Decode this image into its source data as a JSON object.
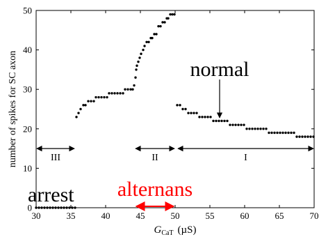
{
  "chart_data": {
    "type": "scatter",
    "xlabel_main": "G",
    "xlabel_sub": "CaT",
    "xlabel_unit": "(µS)",
    "ylabel": "number of spikes for SC axon",
    "xlim": [
      30,
      70
    ],
    "ylim": [
      0,
      50
    ],
    "x_ticks": [
      "30",
      "35",
      "40",
      "45",
      "50",
      "55",
      "60",
      "65",
      "70"
    ],
    "y_ticks": [
      "0",
      "10",
      "20",
      "30",
      "40",
      "50"
    ],
    "marker_color": "#000000",
    "series": [
      {
        "points": [
          [
            30.0,
            0
          ],
          [
            30.4,
            0
          ],
          [
            30.8,
            0
          ],
          [
            31.2,
            0
          ],
          [
            31.6,
            0
          ],
          [
            32.0,
            0
          ],
          [
            32.4,
            0
          ],
          [
            32.8,
            0
          ],
          [
            33.2,
            0
          ],
          [
            33.6,
            0
          ],
          [
            34.0,
            0
          ],
          [
            34.4,
            0
          ],
          [
            34.8,
            0
          ],
          [
            35.2,
            0
          ],
          [
            35.6,
            0
          ],
          [
            35.8,
            23
          ],
          [
            36.1,
            24
          ],
          [
            36.4,
            25
          ],
          [
            36.8,
            26
          ],
          [
            37.1,
            26
          ],
          [
            37.5,
            27
          ],
          [
            37.9,
            27
          ],
          [
            38.3,
            27
          ],
          [
            38.6,
            28
          ],
          [
            39.0,
            28
          ],
          [
            39.4,
            28
          ],
          [
            39.8,
            28
          ],
          [
            40.2,
            28
          ],
          [
            40.5,
            29
          ],
          [
            40.9,
            29
          ],
          [
            41.3,
            29
          ],
          [
            41.7,
            29
          ],
          [
            42.1,
            29
          ],
          [
            42.5,
            29
          ],
          [
            42.8,
            30
          ],
          [
            43.2,
            30
          ],
          [
            43.6,
            30
          ],
          [
            43.9,
            30
          ],
          [
            44.1,
            31
          ],
          [
            44.3,
            33
          ],
          [
            44.4,
            35
          ],
          [
            44.5,
            36
          ],
          [
            44.7,
            37
          ],
          [
            44.9,
            38
          ],
          [
            45.1,
            39
          ],
          [
            45.4,
            40
          ],
          [
            45.6,
            41
          ],
          [
            45.9,
            42
          ],
          [
            46.2,
            42
          ],
          [
            46.5,
            43
          ],
          [
            46.7,
            43
          ],
          [
            47.0,
            44
          ],
          [
            47.3,
            44
          ],
          [
            47.6,
            46
          ],
          [
            47.9,
            46
          ],
          [
            48.2,
            47
          ],
          [
            48.5,
            47
          ],
          [
            48.8,
            48
          ],
          [
            49.0,
            48
          ],
          [
            49.3,
            49
          ],
          [
            49.6,
            49
          ],
          [
            49.9,
            49
          ],
          [
            50.3,
            26
          ],
          [
            50.7,
            26
          ],
          [
            51.1,
            25
          ],
          [
            51.5,
            25
          ],
          [
            51.9,
            24
          ],
          [
            52.3,
            24
          ],
          [
            52.7,
            24
          ],
          [
            53.1,
            24
          ],
          [
            53.5,
            23
          ],
          [
            53.9,
            23
          ],
          [
            54.3,
            23
          ],
          [
            54.7,
            23
          ],
          [
            55.1,
            23
          ],
          [
            55.5,
            22
          ],
          [
            55.9,
            22
          ],
          [
            56.3,
            22
          ],
          [
            56.7,
            22
          ],
          [
            57.1,
            22
          ],
          [
            57.5,
            22
          ],
          [
            57.9,
            21
          ],
          [
            58.3,
            21
          ],
          [
            58.7,
            21
          ],
          [
            59.1,
            21
          ],
          [
            59.5,
            21
          ],
          [
            59.9,
            21
          ],
          [
            60.3,
            20
          ],
          [
            60.7,
            20
          ],
          [
            61.1,
            20
          ],
          [
            61.5,
            20
          ],
          [
            61.9,
            20
          ],
          [
            62.3,
            20
          ],
          [
            62.7,
            20
          ],
          [
            63.1,
            20
          ],
          [
            63.5,
            19
          ],
          [
            63.9,
            19
          ],
          [
            64.3,
            19
          ],
          [
            64.7,
            19
          ],
          [
            65.1,
            19
          ],
          [
            65.5,
            19
          ],
          [
            65.9,
            19
          ],
          [
            66.3,
            19
          ],
          [
            66.7,
            19
          ],
          [
            67.1,
            19
          ],
          [
            67.5,
            18
          ],
          [
            67.9,
            18
          ],
          [
            68.3,
            18
          ],
          [
            68.7,
            18
          ],
          [
            69.1,
            18
          ],
          [
            69.5,
            18
          ],
          [
            69.9,
            18
          ]
        ]
      }
    ],
    "regions": [
      {
        "label": "III",
        "x_from": 30,
        "x_to": 35.6,
        "y": 15
      },
      {
        "label": "II",
        "x_from": 44.2,
        "x_to": 50,
        "y": 15
      },
      {
        "label": "I",
        "x_from": 50.3,
        "x_to": 70,
        "y": 15
      }
    ],
    "annotations": {
      "arrest": {
        "text": "arrest",
        "color": "#000000"
      },
      "alternans": {
        "text": "alternans",
        "color": "#ff0000",
        "x_from": 44.2,
        "x_to": 50,
        "y": 0
      },
      "normal": {
        "text": "normal",
        "color": "#000000",
        "arrow_x": 56.4,
        "arrow_y_from": 32.5,
        "arrow_y_to": 22.8
      }
    }
  }
}
